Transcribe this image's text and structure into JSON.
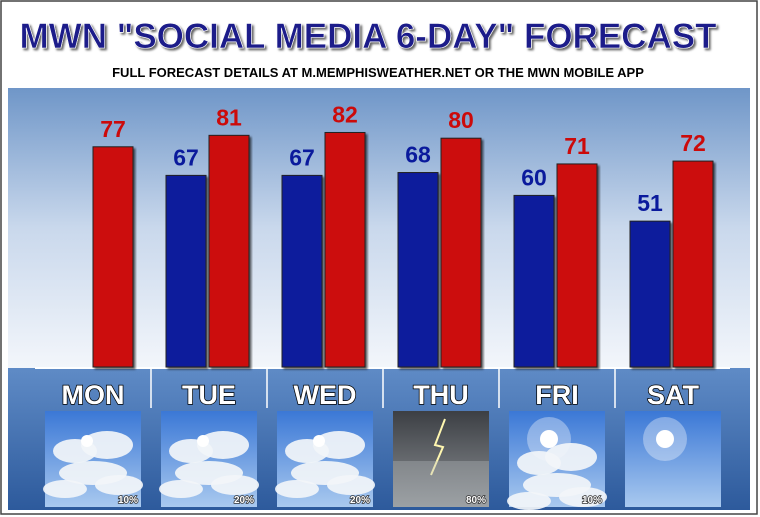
{
  "chart_data": {
    "type": "bar",
    "title": "MWN \"SOCIAL MEDIA 6-DAY\" FORECAST",
    "subtitle": "FULL FORECAST DETAILS AT M.MEMPHISWEATHER.NET OR THE MWN MOBILE APP",
    "categories": [
      "MON",
      "TUE",
      "WED",
      "THU",
      "FRI",
      "SAT"
    ],
    "series": [
      {
        "color": "#0a1a9c",
        "values": [
          null,
          67,
          67,
          68,
          60,
          51
        ]
      },
      {
        "color": "#cc0a0a",
        "values": [
          77,
          81,
          82,
          80,
          71,
          72
        ]
      }
    ],
    "precipitation": [
      {
        "value": 10,
        "label": "10%"
      },
      {
        "value": 20,
        "label": "20%"
      },
      {
        "value": 20,
        "label": "20%"
      },
      {
        "value": 80,
        "label": "80%"
      },
      {
        "value": 10,
        "label": "10%"
      },
      null
    ]
  }
}
